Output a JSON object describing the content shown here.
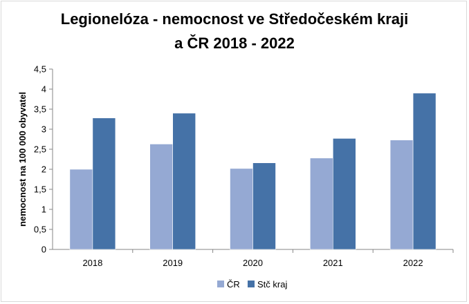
{
  "chart_data": {
    "type": "bar",
    "title_line1": "Legionelóza - nemocnost ve Středočeském kraji",
    "title_line2": "a ČR 2018 - 2022",
    "ylabel": "nemocnost na 100 000 obyvatel",
    "xlabel": "",
    "categories": [
      "2018",
      "2019",
      "2020",
      "2021",
      "2022"
    ],
    "ylim": [
      0,
      4.5
    ],
    "yticks": [
      "0",
      "0,5",
      "1",
      "1,5",
      "2",
      "2,5",
      "3",
      "3,5",
      "4",
      "4,5"
    ],
    "ytick_values": [
      0,
      0.5,
      1,
      1.5,
      2,
      2.5,
      3,
      3.5,
      4,
      4.5
    ],
    "grid": false,
    "legend_position": "bottom",
    "series": [
      {
        "name": "ČR",
        "color": "#95a9d3",
        "values": [
          2.0,
          2.63,
          2.02,
          2.28,
          2.73
        ]
      },
      {
        "name": "Stč kraj",
        "color": "#4572a7",
        "values": [
          3.28,
          3.4,
          2.16,
          2.77,
          3.9
        ]
      }
    ]
  }
}
